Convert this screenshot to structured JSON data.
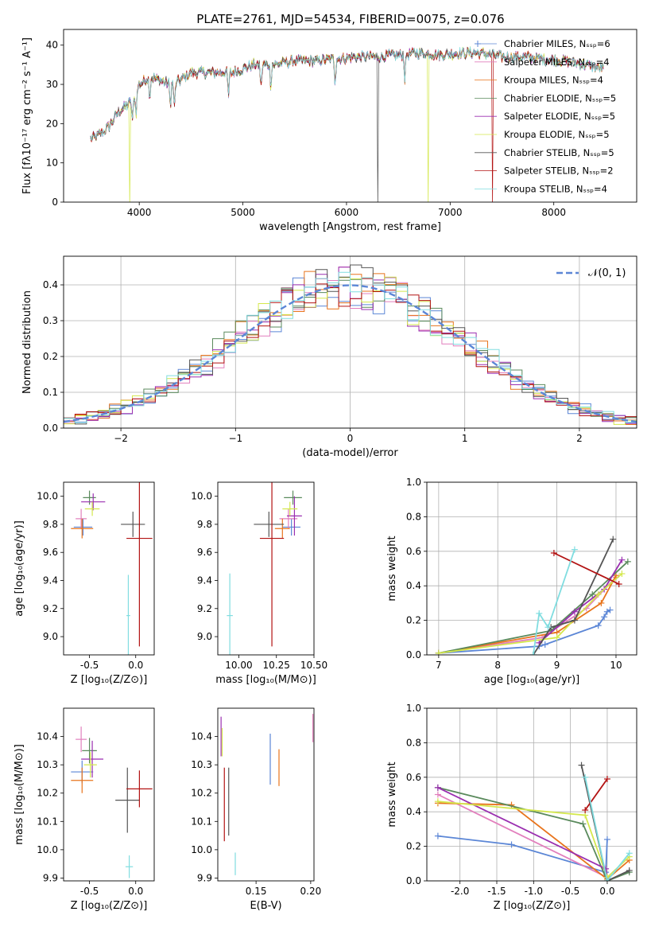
{
  "colors": {
    "Chabrier MILES": "#5b86d6",
    "Salpeter MILES": "#e27fbd",
    "Kroupa MILES": "#e8741c",
    "Chabrier ELODIE": "#5a8a5c",
    "Salpeter ELODIE": "#9a2fb0",
    "Kroupa ELODIE": "#d4e84d",
    "Chabrier STELIB": "#555555",
    "Salpeter STELIB": "#b31313",
    "Kroupa STELIB": "#80dde0",
    "normal": "#5b86d6"
  },
  "chart_data": [
    {
      "id": "spectrum",
      "type": "line",
      "title": "PLATE=2761, MJD=54534, FIBERID=0075, z=0.076",
      "xlabel": "wavelength [Angstrom, rest frame]",
      "ylabel": "Flux [fλ10⁻¹⁷ erg cm⁻² s⁻¹ A⁻¹]",
      "xlim": [
        3270,
        8800
      ],
      "ylim": [
        0,
        44
      ],
      "xticks": [
        4000,
        5000,
        6000,
        7000,
        8000
      ],
      "yticks": [
        0,
        10,
        20,
        30,
        40
      ],
      "legend_position": "right",
      "series": [
        {
          "name": "Chabrier MILES, Nₛₛₚ=6",
          "model": "Chabrier MILES"
        },
        {
          "name": "Salpeter MILES, Nₛₛₚ=4",
          "model": "Salpeter MILES"
        },
        {
          "name": "Kroupa MILES, Nₛₛₚ=4",
          "model": "Kroupa MILES"
        },
        {
          "name": "Chabrier ELODIE, Nₛₛₚ=5",
          "model": "Chabrier ELODIE"
        },
        {
          "name": "Salpeter ELODIE, Nₛₛₚ=5",
          "model": "Salpeter ELODIE"
        },
        {
          "name": "Kroupa ELODIE, Nₛₛₚ=5",
          "model": "Kroupa ELODIE"
        },
        {
          "name": "Chabrier STELIB, Nₛₛₚ=5",
          "model": "Chabrier STELIB"
        },
        {
          "name": "Salpeter STELIB, Nₛₛₚ=2",
          "model": "Salpeter STELIB"
        },
        {
          "name": "Kroupa STELIB, Nₛₛₚ=4",
          "model": "Kroupa STELIB"
        }
      ],
      "continuum": {
        "x": [
          3530,
          3600,
          3700,
          3800,
          3900,
          3950,
          4000,
          4100,
          4200,
          4300,
          4400,
          4500,
          4700,
          4900,
          5000,
          5100,
          5300,
          5500,
          5700,
          5900,
          6100,
          6300,
          6500,
          6700,
          6900,
          7100,
          7300,
          7500,
          7700,
          7900,
          8100,
          8300,
          8480
        ],
        "y": [
          16,
          17,
          19,
          23,
          25,
          27,
          30,
          32,
          31,
          30,
          31,
          33,
          33,
          33,
          34,
          35,
          35,
          36,
          36,
          36.5,
          37,
          37,
          37.5,
          38,
          37.5,
          38,
          38,
          37,
          37,
          36.5,
          36,
          35,
          34
        ]
      },
      "drops": [
        {
          "model": "Kroupa ELODIE",
          "x": 3910
        },
        {
          "model": "Kroupa ELODIE",
          "x": 6790
        },
        {
          "model": "Salpeter STELIB",
          "x": 7410
        },
        {
          "model": "Chabrier STELIB",
          "x": 6300
        }
      ]
    },
    {
      "id": "residuals",
      "type": "histogram",
      "xlabel": "(data-model)/error",
      "ylabel": "Normed distribution",
      "xlim": [
        -2.5,
        2.5
      ],
      "ylim": [
        0,
        0.48
      ],
      "xticks": [
        -2,
        -1,
        0,
        1,
        2
      ],
      "yticks": [
        0.0,
        0.1,
        0.2,
        0.3,
        0.4
      ],
      "legend": "𝒩(0, 1)",
      "legend_position": "top-right",
      "grid": true,
      "bin_width": 0.1,
      "reference_curve": "normal pdf, mean 0, sigma 1"
    },
    {
      "id": "age-vs-Z",
      "type": "errorbar",
      "xlabel": "Z [log₁₀(Z/Z⊙)]",
      "ylabel": "age  [log₁₀(age/yr)]",
      "xlim": [
        -0.78,
        0.2
      ],
      "ylim": [
        8.87,
        10.1
      ],
      "xticks": [
        -0.5,
        0.0
      ],
      "yticks": [
        9.0,
        9.2,
        9.4,
        9.6,
        9.8,
        10.0
      ],
      "points": [
        {
          "model": "Chabrier MILES",
          "x": -0.57,
          "xerr": 0.1,
          "y": 9.78,
          "yerr": 0.06
        },
        {
          "model": "Salpeter MILES",
          "x": -0.59,
          "xerr": 0.06,
          "y": 9.84,
          "yerr": 0.07
        },
        {
          "model": "Kroupa MILES",
          "x": -0.58,
          "xerr": 0.12,
          "y": 9.77,
          "yerr": 0.07
        },
        {
          "model": "Chabrier ELODIE",
          "x": -0.5,
          "xerr": 0.07,
          "y": 9.99,
          "yerr": 0.05
        },
        {
          "model": "Salpeter ELODIE",
          "x": -0.46,
          "xerr": 0.13,
          "y": 9.96,
          "yerr": 0.06
        },
        {
          "model": "Kroupa ELODIE",
          "x": -0.47,
          "xerr": 0.08,
          "y": 9.91,
          "yerr": 0.05
        },
        {
          "model": "Chabrier STELIB",
          "x": -0.03,
          "xerr": 0.13,
          "y": 9.8,
          "yerr": 0.09
        },
        {
          "model": "Salpeter STELIB",
          "x": 0.04,
          "xerr": 0.14,
          "y": 9.7,
          "yerr": 0.77
        },
        {
          "model": "Kroupa STELIB",
          "x": -0.08,
          "xerr": 0.02,
          "y": 9.15,
          "yerr": 0.29
        }
      ]
    },
    {
      "id": "age-vs-mass",
      "type": "errorbar",
      "xlabel": "mass [log₁₀(M/M⊙)]",
      "ylabel": "",
      "xlim": [
        9.86,
        10.5
      ],
      "ylim": [
        8.87,
        10.1
      ],
      "xticks": [
        10.0,
        10.25,
        10.5
      ],
      "yticks": [
        9.0,
        9.2,
        9.4,
        9.6,
        9.8,
        10.0
      ],
      "points": [
        {
          "model": "Chabrier MILES",
          "x": 10.35,
          "xerr": 0.06,
          "y": 9.78,
          "yerr": 0.06
        },
        {
          "model": "Salpeter MILES",
          "x": 10.33,
          "xerr": 0.06,
          "y": 9.84,
          "yerr": 0.07
        },
        {
          "model": "Kroupa MILES",
          "x": 10.29,
          "xerr": 0.05,
          "y": 9.77,
          "yerr": 0.07
        },
        {
          "model": "Chabrier ELODIE",
          "x": 10.36,
          "xerr": 0.06,
          "y": 9.99,
          "yerr": 0.05
        },
        {
          "model": "Salpeter ELODIE",
          "x": 10.37,
          "xerr": 0.05,
          "y": 9.86,
          "yerr": 0.14
        },
        {
          "model": "Kroupa ELODIE",
          "x": 10.34,
          "xerr": 0.05,
          "y": 9.91,
          "yerr": 0.05
        },
        {
          "model": "Chabrier STELIB",
          "x": 10.2,
          "xerr": 0.1,
          "y": 9.8,
          "yerr": 0.09
        },
        {
          "model": "Salpeter STELIB",
          "x": 10.22,
          "xerr": 0.08,
          "y": 9.7,
          "yerr": 0.77
        },
        {
          "model": "Kroupa STELIB",
          "x": 9.94,
          "xerr": 0.02,
          "y": 9.15,
          "yerr": 0.3
        }
      ]
    },
    {
      "id": "weight-vs-age",
      "type": "line",
      "xlabel": "age  [log₁₀(age/yr)]",
      "ylabel": "mass weight",
      "xlim": [
        6.8,
        10.35
      ],
      "ylim": [
        0,
        1
      ],
      "xticks": [
        7,
        8,
        9,
        10
      ],
      "yticks": [
        0.0,
        0.2,
        0.4,
        0.6,
        0.8,
        1.0
      ],
      "grid": true,
      "series": [
        {
          "model": "Chabrier MILES",
          "x": [
            7.0,
            8.7,
            8.8,
            9.7,
            9.8,
            9.85,
            9.9
          ],
          "y": [
            0.01,
            0.05,
            0.06,
            0.17,
            0.22,
            0.25,
            0.26
          ]
        },
        {
          "model": "Salpeter MILES",
          "x": [
            7.0,
            8.75,
            9.5,
            10.0
          ],
          "y": [
            0.01,
            0.1,
            0.27,
            0.45
          ]
        },
        {
          "model": "Kroupa MILES",
          "x": [
            7.0,
            9.0,
            9.75,
            10.0
          ],
          "y": [
            0.01,
            0.13,
            0.3,
            0.46
          ]
        },
        {
          "model": "Chabrier ELODIE",
          "x": [
            7.0,
            8.9,
            9.6,
            10.2
          ],
          "y": [
            0.01,
            0.14,
            0.35,
            0.54
          ]
        },
        {
          "model": "Salpeter ELODIE",
          "x": [
            8.7,
            9.3,
            9.8,
            10.1
          ],
          "y": [
            0.07,
            0.25,
            0.38,
            0.55
          ]
        },
        {
          "model": "Kroupa ELODIE",
          "x": [
            7.0,
            9.0,
            9.7,
            10.1
          ],
          "y": [
            0.01,
            0.1,
            0.35,
            0.47
          ]
        },
        {
          "model": "Chabrier STELIB",
          "x": [
            8.6,
            8.9,
            9.3,
            9.95
          ],
          "y": [
            0.0,
            0.16,
            0.2,
            0.67
          ]
        },
        {
          "model": "Salpeter STELIB",
          "x": [
            8.95,
            10.05
          ],
          "y": [
            0.59,
            0.41
          ]
        },
        {
          "model": "Kroupa STELIB",
          "x": [
            8.6,
            8.7,
            8.85,
            9.3
          ],
          "y": [
            0.0,
            0.24,
            0.16,
            0.61
          ]
        }
      ]
    },
    {
      "id": "mass-vs-Z",
      "type": "errorbar",
      "xlabel": "Z [log₁₀(Z/Z⊙)]",
      "ylabel": "mass [log₁₀(M/M⊙)]",
      "xlim": [
        -0.78,
        0.2
      ],
      "ylim": [
        9.89,
        10.5
      ],
      "xticks": [
        -0.5,
        0.0
      ],
      "yticks": [
        9.9,
        10.0,
        10.1,
        10.2,
        10.3,
        10.4
      ],
      "points": [
        {
          "model": "Chabrier MILES",
          "x": -0.58,
          "xerr": 0.12,
          "y": 10.275,
          "yerr": 0.04
        },
        {
          "model": "Salpeter MILES",
          "x": -0.59,
          "xerr": 0.06,
          "y": 10.39,
          "yerr": 0.045
        },
        {
          "model": "Kroupa MILES",
          "x": -0.58,
          "xerr": 0.12,
          "y": 10.245,
          "yerr": 0.045
        },
        {
          "model": "Chabrier ELODIE",
          "x": -0.5,
          "xerr": 0.08,
          "y": 10.35,
          "yerr": 0.045
        },
        {
          "model": "Salpeter ELODIE",
          "x": -0.47,
          "xerr": 0.12,
          "y": 10.32,
          "yerr": 0.065
        },
        {
          "model": "Kroupa ELODIE",
          "x": -0.49,
          "xerr": 0.07,
          "y": 10.3,
          "yerr": 0.045
        },
        {
          "model": "Chabrier STELIB",
          "x": -0.09,
          "xerr": 0.13,
          "y": 10.175,
          "yerr": 0.115
        },
        {
          "model": "Salpeter STELIB",
          "x": 0.04,
          "xerr": 0.14,
          "y": 10.215,
          "yerr": 0.065
        },
        {
          "model": "Kroupa STELIB",
          "x": -0.07,
          "xerr": 0.04,
          "y": 9.94,
          "yerr": 0.04
        }
      ]
    },
    {
      "id": "mass-vs-ebv",
      "type": "errorbar",
      "xlabel": "E(B-V)",
      "ylabel": "",
      "xlim": [
        0.115,
        0.203
      ],
      "ylim": [
        9.89,
        10.5
      ],
      "xticks": [
        0.15,
        0.2
      ],
      "yticks": [
        9.9,
        10.0,
        10.1,
        10.2,
        10.3,
        10.4
      ],
      "points": [
        {
          "model": "Chabrier MILES",
          "x": 0.163,
          "xerr": 0,
          "y": 10.32,
          "yerr": 0.09
        },
        {
          "model": "Kroupa MILES",
          "x": 0.171,
          "xerr": 0,
          "y": 10.29,
          "yerr": 0.065
        },
        {
          "model": "Salpeter ELODIE",
          "x": 0.118,
          "xerr": 0,
          "y": 10.4,
          "yerr": 0.07
        },
        {
          "model": "Kroupa ELODIE",
          "x": 0.119,
          "xerr": 0,
          "y": 10.38,
          "yerr": 0.05
        },
        {
          "model": "Chabrier STELIB",
          "x": 0.125,
          "xerr": 0,
          "y": 10.17,
          "yerr": 0.12
        },
        {
          "model": "Salpeter STELIB",
          "x": 0.121,
          "xerr": 0,
          "y": 10.16,
          "yerr": 0.13
        },
        {
          "model": "Kroupa STELIB",
          "x": 0.131,
          "xerr": 0,
          "y": 9.95,
          "yerr": 0.04
        },
        {
          "model": "Salpeter MILES",
          "x": 0.202,
          "xerr": 0,
          "y": 10.43,
          "yerr": 0.05
        }
      ]
    },
    {
      "id": "weight-vs-Z",
      "type": "line",
      "xlabel": "Z [log₁₀(Z/Z⊙)]",
      "ylabel": "mass weight",
      "xlim": [
        -2.45,
        0.4
      ],
      "ylim": [
        0,
        1
      ],
      "xticks": [
        -2.0,
        -1.5,
        -1.0,
        -0.5,
        0.0
      ],
      "yticks": [
        0.0,
        0.2,
        0.4,
        0.6,
        0.8,
        1.0
      ],
      "grid": true,
      "series": [
        {
          "model": "Chabrier MILES",
          "x": [
            -2.3,
            -1.3,
            -0.02,
            0.0
          ],
          "y": [
            0.26,
            0.21,
            0.05,
            0.24
          ]
        },
        {
          "model": "Salpeter MILES",
          "x": [
            -2.3,
            0.0
          ],
          "y": [
            0.5,
            0.02
          ]
        },
        {
          "model": "Kroupa MILES",
          "x": [
            -2.3,
            -1.3,
            0.0,
            0.3
          ],
          "y": [
            0.45,
            0.44,
            0.01,
            0.12
          ]
        },
        {
          "model": "Chabrier ELODIE",
          "x": [
            -2.3,
            -0.33,
            0.0,
            0.3
          ],
          "y": [
            0.54,
            0.33,
            0.0,
            0.05
          ]
        },
        {
          "model": "Salpeter ELODIE",
          "x": [
            -2.3,
            -0.02,
            0.0
          ],
          "y": [
            0.54,
            0.07,
            0.02
          ]
        },
        {
          "model": "Kroupa ELODIE",
          "x": [
            -2.3,
            -0.3,
            0.0,
            0.3
          ],
          "y": [
            0.46,
            0.38,
            0.02,
            0.14
          ]
        },
        {
          "model": "Chabrier STELIB",
          "x": [
            -0.35,
            0.0,
            0.3
          ],
          "y": [
            0.67,
            0.0,
            0.06
          ]
        },
        {
          "model": "Salpeter STELIB",
          "x": [
            -0.3,
            0.0
          ],
          "y": [
            0.41,
            0.59
          ]
        },
        {
          "model": "Kroupa STELIB",
          "x": [
            -0.3,
            0.0,
            0.3
          ],
          "y": [
            0.6,
            0.0,
            0.16
          ]
        }
      ]
    }
  ]
}
